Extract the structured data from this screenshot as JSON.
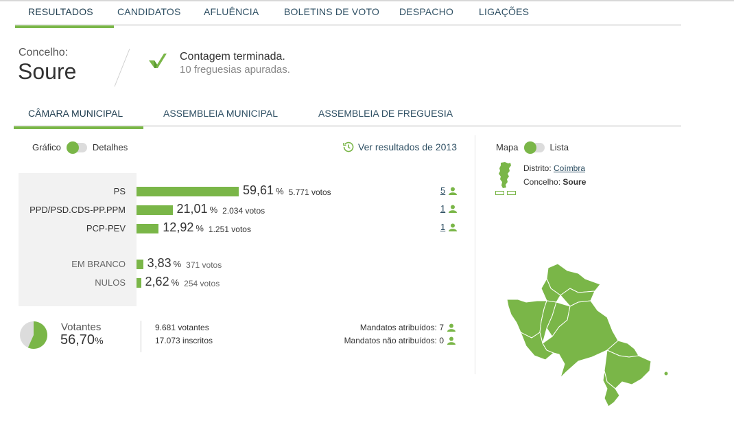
{
  "top_nav": {
    "tabs": [
      {
        "label": "RESULTADOS",
        "active": true
      },
      {
        "label": "CANDIDATOS",
        "active": false
      },
      {
        "label": "AFLUÊNCIA",
        "active": false
      },
      {
        "label": "BOLETINS DE VOTO",
        "active": false
      },
      {
        "label": "DESPACHO",
        "active": false
      },
      {
        "label": "LIGAÇÕES",
        "active": false
      }
    ]
  },
  "header": {
    "concelho_label": "Concelho:",
    "concelho_name": "Soure",
    "count_status": "Contagem terminada.",
    "count_detail": "10 freguesias apuradas."
  },
  "sub_nav": {
    "tabs": [
      {
        "label": "CÂMARA MUNICIPAL",
        "active": true
      },
      {
        "label": "ASSEMBLEIA MUNICIPAL",
        "active": false
      },
      {
        "label": "ASSEMBLEIA DE FREGUESIA",
        "active": false
      }
    ]
  },
  "view_toggle": {
    "left_label": "Gráfico",
    "right_label": "Detalhes",
    "selected": "Gráfico"
  },
  "map_toggle": {
    "left_label": "Mapa",
    "right_label": "Lista",
    "selected": "Mapa"
  },
  "previous_results_link": "Ver resultados de 2013",
  "results": [
    {
      "party": "PS",
      "percent": 59.61,
      "percent_text": "59,61",
      "votes_text": "5.771 votos",
      "mandates": "5"
    },
    {
      "party": "PPD/PSD.CDS-PP.PPM",
      "percent": 21.01,
      "percent_text": "21,01",
      "votes_text": "2.034 votos",
      "mandates": "1"
    },
    {
      "party": "PCP-PEV",
      "percent": 12.92,
      "percent_text": "12,92",
      "votes_text": "1.251 votos",
      "mandates": "1"
    }
  ],
  "other_votes": [
    {
      "label": "EM BRANCO",
      "percent": 3.83,
      "percent_text": "3,83",
      "votes_text": "371 votos"
    },
    {
      "label": "NULOS",
      "percent": 2.62,
      "percent_text": "2,62",
      "votes_text": "254 votos"
    }
  ],
  "percent_symbol": "%",
  "turnout": {
    "label": "Votantes",
    "percent": 56.7,
    "percent_text": "56,70",
    "voters_text": "9.681 votantes",
    "registered_text": "17.073 inscritos"
  },
  "mandates_summary": {
    "attributed_label": "Mandatos atribuídos: 7",
    "unattributed_label": "Mandatos não atribuídos: 0"
  },
  "location": {
    "district_label": "Distrito:",
    "district_value": "Coímbra",
    "concelho_label": "Concelho:",
    "concelho_value": "Soure"
  },
  "colors": {
    "accent": "#7ab648",
    "nav_text": "#2e4f63",
    "panel_bg": "#f2f2f2"
  },
  "icons": {
    "status": "check-icon",
    "mandate": "person-icon",
    "history": "clock-icon"
  }
}
